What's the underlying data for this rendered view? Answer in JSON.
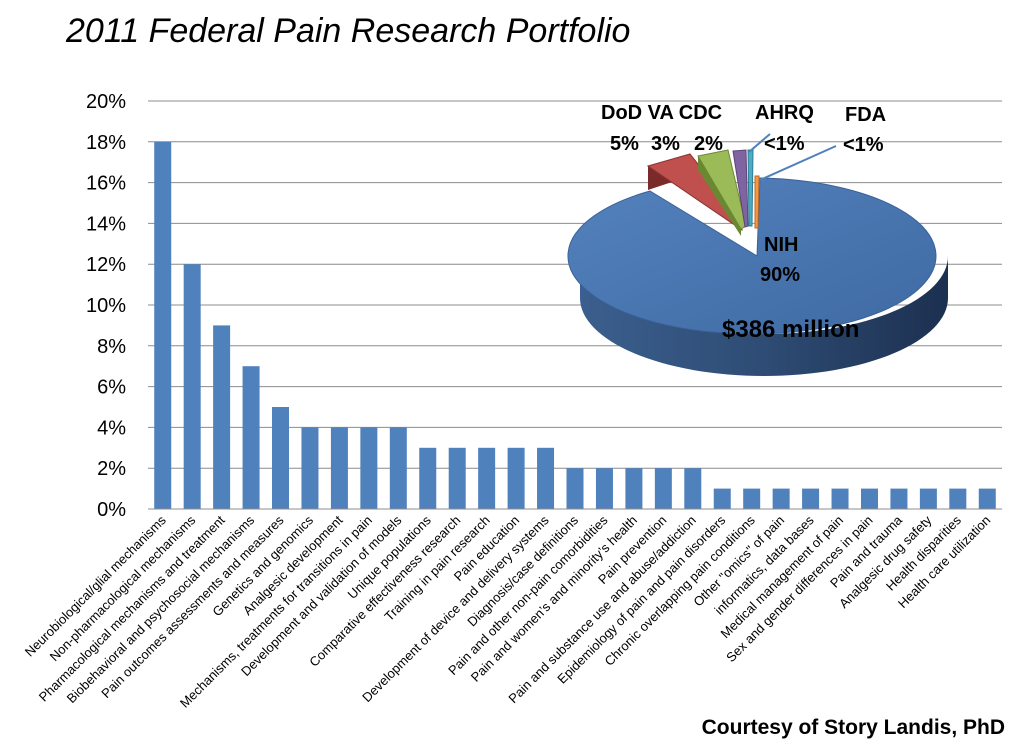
{
  "chart_data": [
    {
      "type": "bar",
      "title": "2011 Federal Pain Research Portfolio",
      "xlabel": "",
      "ylabel": "",
      "ylim": [
        0,
        20
      ],
      "yticks": [
        "0%",
        "2%",
        "4%",
        "6%",
        "8%",
        "10%",
        "12%",
        "14%",
        "16%",
        "18%",
        "20%"
      ],
      "grid": true,
      "bar_color": "#4f81bd",
      "categories": [
        "Neurobiological/glial mechanisms",
        "Non-pharmacological mechanisms",
        "Pharmacological mechanisms and treatment",
        "Biobehavioral and psychosocial mechanisms",
        "Pain outcomes assessments and  measures",
        "Genetics and genomics",
        "Analgesic development",
        "Mechanisms, treatments for transitions in pain",
        "Development  and validation of models",
        "Unique  populations",
        "Comparative effectiveness research",
        "Training in pain research",
        "Pain education",
        "Development of device and  delivery systems",
        "Diagnosis/case definitions",
        "Pain and other non-pain comorbidities",
        "Pain and women’s and minority’s health",
        "Pain prevention",
        "Pain and substance use and abuse/addiction",
        "Epidemiology of pain and pain disorders",
        "Chronic overlapping pain conditions",
        "Other \"omics\" of pain",
        "informatics, data bases",
        "Medical management of pain",
        "Sex and gender differences in pain",
        "Pain and trauma",
        "Analgesic drug safety",
        "Health disparities",
        "Health care utilization"
      ],
      "values": [
        18,
        12,
        9,
        7,
        5,
        4,
        4,
        4,
        4,
        3,
        3,
        3,
        3,
        3,
        2,
        2,
        2,
        2,
        2,
        1,
        1,
        1,
        1,
        1,
        1,
        1,
        1,
        1,
        1
      ]
    },
    {
      "type": "pie",
      "title": "$386 million",
      "slices": [
        {
          "name": "NIH",
          "pct_label": "90%",
          "value": 89.5,
          "color": "#4f81bd",
          "exploded": false
        },
        {
          "name": "DoD",
          "pct_label": "5%",
          "value": 4.8,
          "color": "#c0504d",
          "exploded": true
        },
        {
          "name": "VA",
          "pct_label": "3%",
          "value": 3.0,
          "color": "#9bbb59",
          "exploded": true
        },
        {
          "name": "CDC",
          "pct_label": "2%",
          "value": 1.5,
          "color": "#8064a2",
          "exploded": true
        },
        {
          "name": "AHRQ",
          "pct_label": "<1%",
          "value": 0.7,
          "color": "#4bacc6",
          "exploded": true
        },
        {
          "name": "FDA",
          "pct_label": "<1%",
          "value": 0.5,
          "color": "#f79646",
          "exploded": true
        }
      ],
      "labels": {
        "dod_va_cdc": "DoD VA CDC",
        "dod_pct": "5%",
        "va_pct": "3%",
        "cdc_pct": "2%",
        "ahrq": "AHRQ",
        "ahrq_pct": "<1%",
        "fda": "FDA",
        "fda_pct": "<1%",
        "nih": "NIH",
        "nih_pct": "90%",
        "total": "$386 million"
      }
    }
  ],
  "credit": "Courtesy of Story Landis, PhD"
}
